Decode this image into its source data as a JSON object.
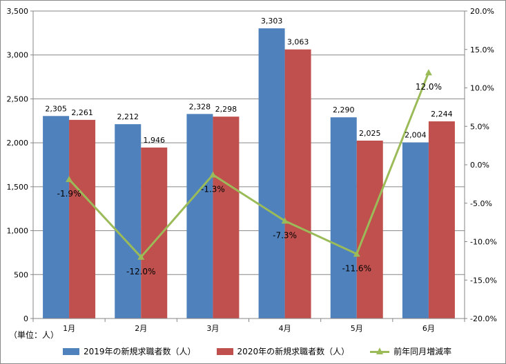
{
  "chart_data": {
    "type": "bar",
    "categories": [
      "1月",
      "2月",
      "3月",
      "4月",
      "5月",
      "6月"
    ],
    "series": [
      {
        "name": "2019年の新規求職者数（人）",
        "kind": "bar",
        "axis": "left",
        "color": "#4F81BD",
        "values": [
          2305,
          2212,
          2328,
          3303,
          2290,
          2004
        ],
        "labels": [
          "2,305",
          "2,212",
          "2,328",
          "3,303",
          "2,290",
          "2,004"
        ]
      },
      {
        "name": "2020年の新規求職者数（人）",
        "kind": "bar",
        "axis": "left",
        "color": "#C0504D",
        "values": [
          2261,
          1946,
          2298,
          3063,
          2025,
          2244
        ],
        "labels": [
          "2,261",
          "1,946",
          "2,298",
          "3,063",
          "2,025",
          "2,244"
        ]
      },
      {
        "name": "前年同月増減率",
        "kind": "line",
        "axis": "right",
        "color": "#9BBB59",
        "values": [
          -1.9,
          -12.0,
          -1.3,
          -7.3,
          -11.6,
          12.0
        ],
        "labels": [
          "-1.9%",
          "-12.0%",
          "-1.3%",
          "-7.3%",
          "-11.6%",
          "12.0%"
        ]
      }
    ],
    "ylim": [
      0,
      3500
    ],
    "y2lim": [
      -20.0,
      20.0
    ],
    "y_ticks": [
      "0",
      "500",
      "1,000",
      "1,500",
      "2,000",
      "2,500",
      "3,000",
      "3,500"
    ],
    "y2_ticks": [
      "-20.0%",
      "-15.0%",
      "-10.0%",
      "-5.0%",
      "0.0%",
      "5.0%",
      "10.0%",
      "15.0%",
      "20.0%"
    ],
    "grid": true,
    "legend_position": "bottom",
    "unit_note": "（単位：人）"
  }
}
